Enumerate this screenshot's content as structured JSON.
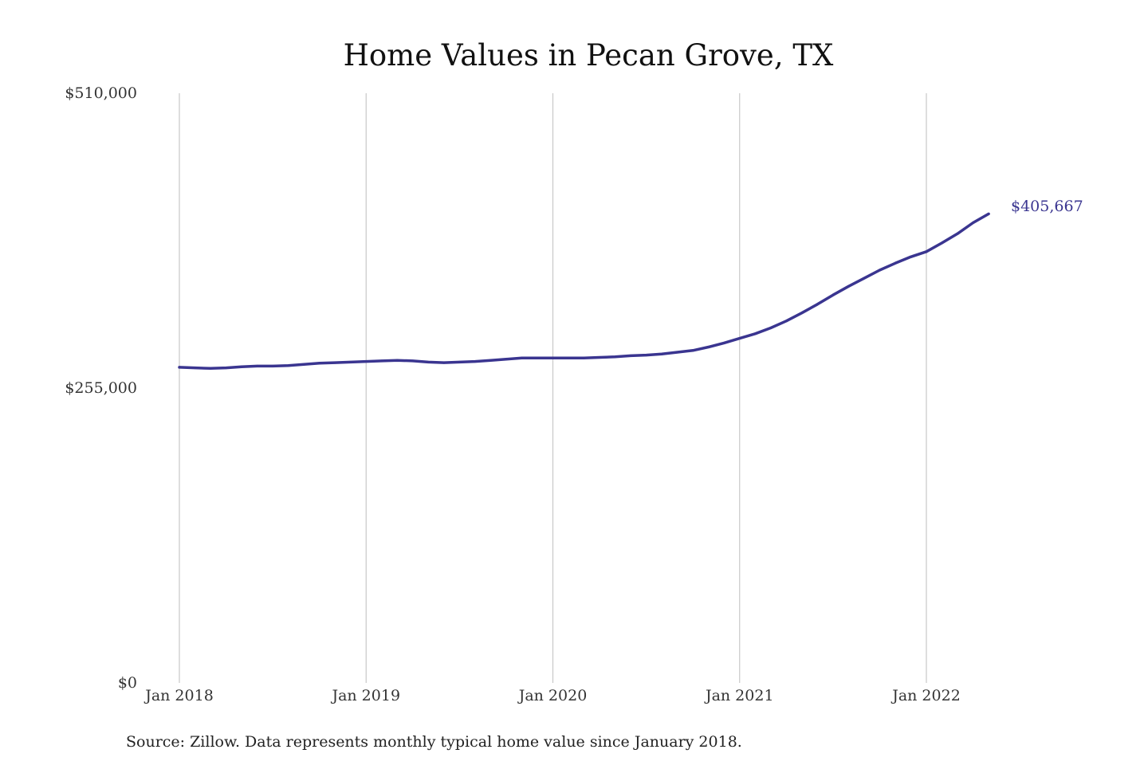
{
  "chart_data": {
    "type": "line",
    "title": "Home Values in Pecan Grove, TX",
    "xlabel": "",
    "ylabel": "",
    "source_note": "Source: Zillow. Data represents monthly typical home value since January 2018.",
    "ylim": [
      0,
      510000
    ],
    "y_ticks": [
      0,
      255000,
      510000
    ],
    "y_tick_labels": [
      "$0",
      "$255,000",
      "$510,000"
    ],
    "x_ticks": [
      "2018-01",
      "2019-01",
      "2020-01",
      "2021-01",
      "2022-01"
    ],
    "x_tick_labels": [
      "Jan 2018",
      "Jan 2019",
      "Jan 2020",
      "Jan 2021",
      "Jan 2022"
    ],
    "x_range": [
      "2018-01",
      "2022-05"
    ],
    "grid": "vertical",
    "line_color": "#3a3590",
    "end_label": "$405,667",
    "series": [
      {
        "x": [
          "2018-01",
          "2018-02",
          "2018-03",
          "2018-04",
          "2018-05",
          "2018-06",
          "2018-07",
          "2018-08",
          "2018-09",
          "2018-10",
          "2018-11",
          "2018-12",
          "2019-01",
          "2019-02",
          "2019-03",
          "2019-04",
          "2019-05",
          "2019-06",
          "2019-07",
          "2019-08",
          "2019-09",
          "2019-10",
          "2019-11",
          "2019-12",
          "2020-01",
          "2020-02",
          "2020-03",
          "2020-04",
          "2020-05",
          "2020-06",
          "2020-07",
          "2020-08",
          "2020-09",
          "2020-10",
          "2020-11",
          "2020-12",
          "2021-01",
          "2021-02",
          "2021-03",
          "2021-04",
          "2021-05",
          "2021-06",
          "2021-07",
          "2021-08",
          "2021-09",
          "2021-10",
          "2021-11",
          "2021-12",
          "2022-01",
          "2022-02",
          "2022-03",
          "2022-04",
          "2022-05"
        ],
        "values": [
          273000,
          272500,
          272000,
          272500,
          273500,
          274000,
          274000,
          274500,
          275500,
          276500,
          277000,
          277500,
          278000,
          278500,
          279000,
          278500,
          277500,
          277000,
          277500,
          278000,
          279000,
          280000,
          281000,
          281000,
          281000,
          281000,
          281000,
          281500,
          282000,
          283000,
          283500,
          284500,
          286000,
          287500,
          290500,
          294000,
          298000,
          302000,
          307000,
          313000,
          320000,
          327500,
          335500,
          343000,
          350000,
          357000,
          363000,
          368500,
          373000,
          380500,
          388500,
          398000,
          405667
        ]
      }
    ]
  }
}
